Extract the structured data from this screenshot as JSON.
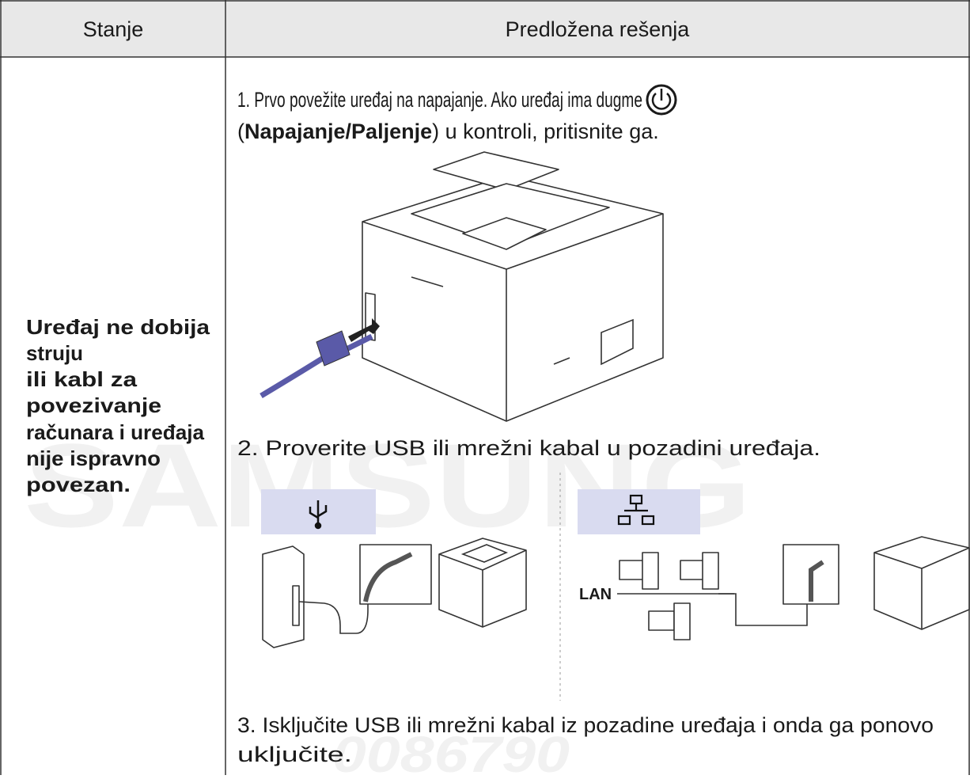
{
  "watermark": {
    "brand": "SAMSUNG",
    "code": "0086790"
  },
  "header": {
    "col1": "Stanje",
    "col2": "Predložena rešenja"
  },
  "condition": [
    "Uređaj ne dobija",
    "struju",
    "ili kabl za",
    "povezivanje",
    "računara i uređaja",
    "nije ispravno",
    "povezan."
  ],
  "steps": {
    "step1": {
      "line1": "1. Prvo povežite uređaj na napajanje. Ako uređaj ima dugme",
      "open": "(",
      "bold": "Napajanje/Paljenje",
      "rest": ") u kontroli, pritisnite ga."
    },
    "step2": {
      "text": "2. Proverite USB ili mrežni kabal u pozadini uređaja.",
      "lan_label": "LAN"
    },
    "step3": {
      "line1": "3. Isključite USB ili mrežni kabal iz pozadine uređaja i onda ga ponovo",
      "line2": "uključite."
    }
  }
}
